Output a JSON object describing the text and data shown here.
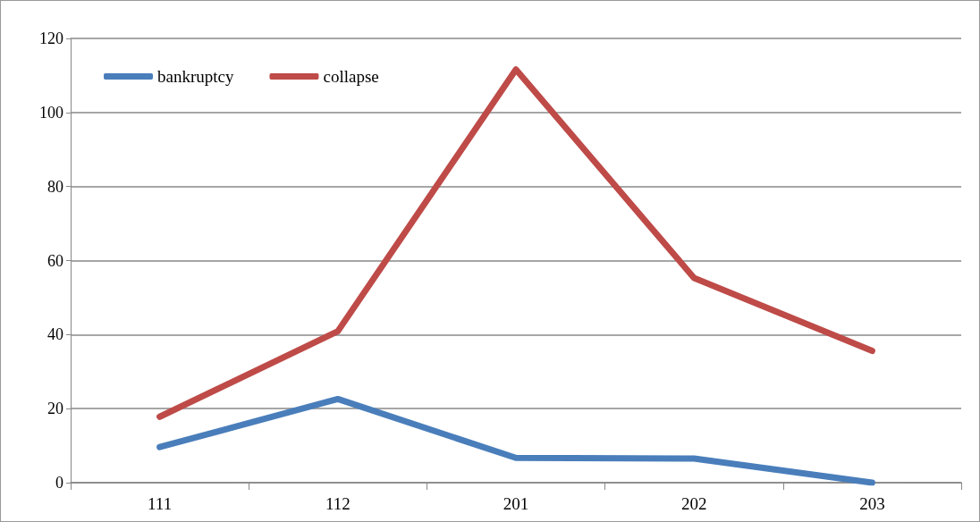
{
  "chart_data": {
    "type": "line",
    "categories": [
      "111",
      "112",
      "201",
      "202",
      "203"
    ],
    "series": [
      {
        "name": "bankruptcy",
        "color": "#4a7ebb",
        "values": [
          9.6,
          22.6,
          6.7,
          6.5,
          0
        ]
      },
      {
        "name": "collapse",
        "color": "#be4b48",
        "values": [
          17.8,
          40.9,
          111.6,
          55.3,
          35.6
        ]
      }
    ],
    "ylim": [
      0,
      120
    ],
    "yticks": [
      0,
      20,
      40,
      60,
      80,
      100,
      120
    ],
    "grid": "y",
    "legend": "top left",
    "marker": "none",
    "line_style": "solid"
  }
}
